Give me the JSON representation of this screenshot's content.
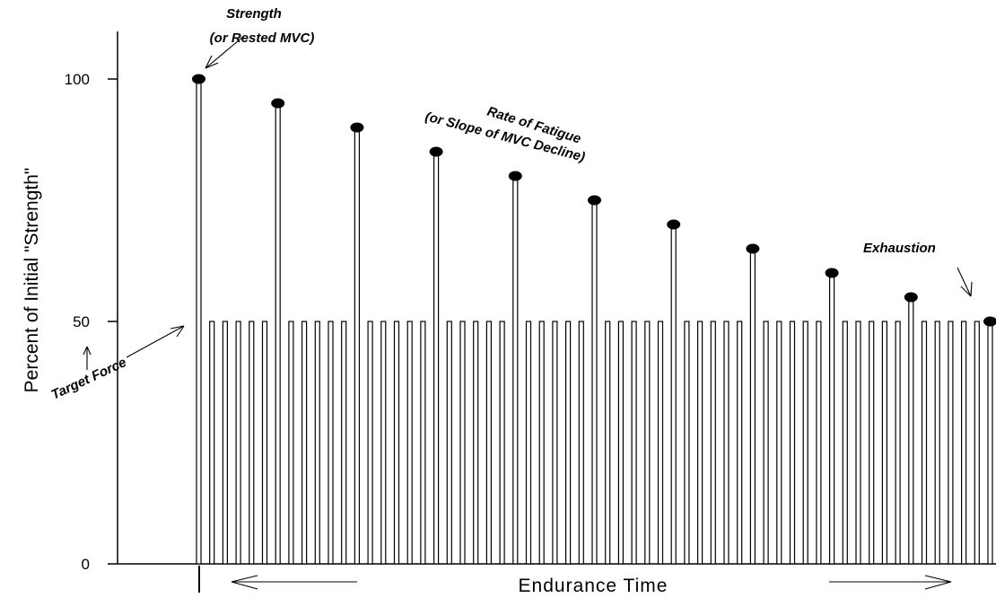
{
  "chart_data": {
    "type": "bar",
    "title": "",
    "ylabel": "Percent of Initial \"Strength\"",
    "xlabel": "Endurance Time",
    "ylim": [
      0,
      100
    ],
    "yticks": [
      {
        "value": 0,
        "label": "0"
      },
      {
        "value": 50,
        "label": "50"
      },
      {
        "value": 100,
        "label": "100"
      }
    ],
    "target_force": 50,
    "bars_per_cycle": 6,
    "cycles": 11,
    "mvc_values": [
      100,
      95,
      90,
      85,
      80,
      75,
      70,
      65,
      60,
      55,
      50
    ],
    "grid": false,
    "annotations": {
      "strength_line1": "Strength",
      "strength_line2": "(or Rested MVC)",
      "fatigue_line1": "Rate of Fatigue",
      "fatigue_line2": "(or Slope of MVC Decline)",
      "exhaustion": "Exhaustion",
      "target_force": "Target Force"
    }
  }
}
